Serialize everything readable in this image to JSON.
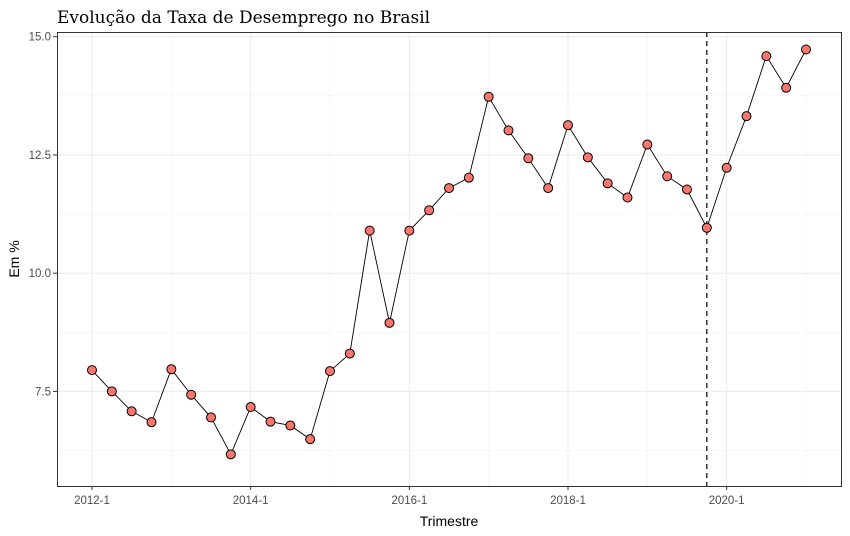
{
  "chart_data": {
    "type": "line",
    "title": "Evolução da Taxa de Desemprego no Brasil",
    "xlabel": "Trimestre",
    "ylabel": "Em %",
    "x": [
      "2012-1",
      "2012-2",
      "2012-3",
      "2012-4",
      "2013-1",
      "2013-2",
      "2013-3",
      "2013-4",
      "2014-1",
      "2014-2",
      "2014-3",
      "2014-4",
      "2015-1",
      "2015-2",
      "2015-3",
      "2015-4",
      "2016-1",
      "2016-2",
      "2016-3",
      "2016-4",
      "2017-1",
      "2017-2",
      "2017-3",
      "2017-4",
      "2018-1",
      "2018-2",
      "2018-3",
      "2018-4",
      "2019-1",
      "2019-2",
      "2019-3",
      "2019-4",
      "2020-1",
      "2020-2",
      "2020-3",
      "2020-4",
      "2021-1"
    ],
    "series": [
      {
        "values": [
          7.95,
          7.5,
          7.08,
          6.85,
          7.97,
          7.43,
          6.95,
          6.17,
          7.17,
          6.86,
          6.78,
          6.49,
          7.93,
          8.3,
          10.9,
          8.95,
          10.9,
          11.33,
          11.8,
          12.02,
          13.73,
          13.02,
          12.43,
          11.8,
          13.13,
          12.45,
          11.9,
          11.6,
          12.72,
          12.05,
          11.77,
          10.96,
          12.23,
          13.32,
          14.59,
          13.92,
          14.73
        ],
        "marker_color": "#f8766d",
        "line_color": "#000000"
      }
    ],
    "xticks": [
      "2012-1",
      "2014-1",
      "2016-1",
      "2018-1",
      "2020-1"
    ],
    "yticks": [
      7.5,
      10.0,
      12.5,
      15.0
    ],
    "ylim": [
      5.5,
      15.1
    ],
    "vline_at": "2019-4",
    "grid": true,
    "legend": "none"
  }
}
